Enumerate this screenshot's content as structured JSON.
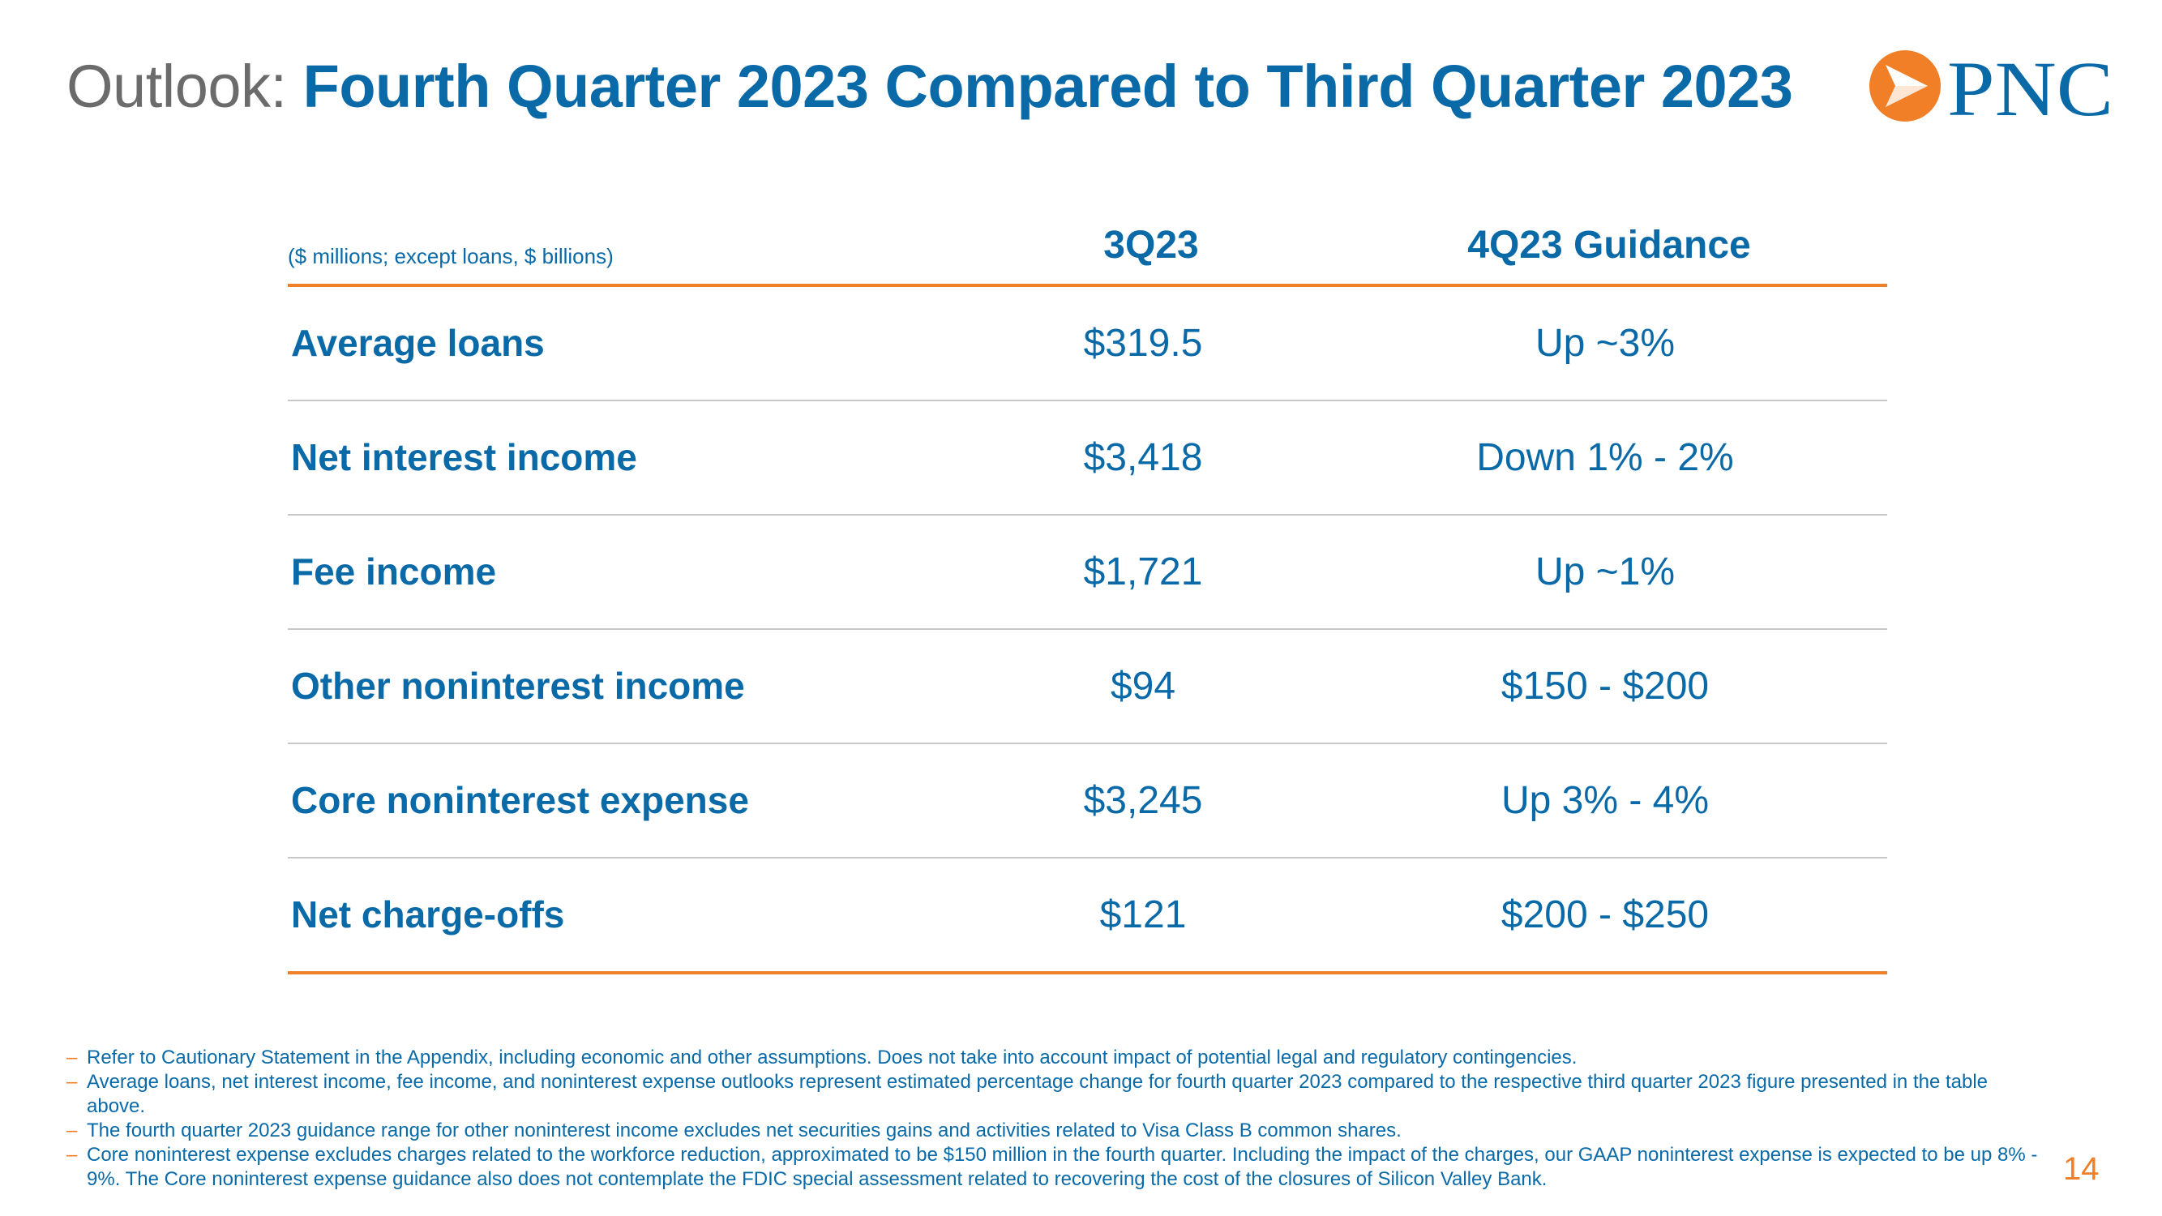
{
  "header": {
    "title_prefix": "Outlook:",
    "title_main": "Fourth Quarter 2023 Compared to Third Quarter 2023",
    "logo_text": "PNC"
  },
  "table": {
    "unit_note": "($ millions; except loans, $ billions)",
    "columns": [
      "3Q23",
      "4Q23 Guidance"
    ],
    "rows": [
      {
        "label": "Average loans",
        "q3": "$319.5",
        "guidance": "Up ~3%"
      },
      {
        "label": "Net interest income",
        "q3": "$3,418",
        "guidance": "Down 1% - 2%"
      },
      {
        "label": "Fee income",
        "q3": "$1,721",
        "guidance": "Up ~1%"
      },
      {
        "label": "Other noninterest income",
        "q3": "$94",
        "guidance": "$150 - $200"
      },
      {
        "label": "Core noninterest expense",
        "q3": "$3,245",
        "guidance": "Up 3% - 4%"
      },
      {
        "label": "Net charge-offs",
        "q3": "$121",
        "guidance": "$200 - $250"
      }
    ]
  },
  "footnotes": [
    "Refer to Cautionary Statement in the Appendix, including economic and other assumptions. Does not take into account impact of potential legal and regulatory contingencies.",
    "Average loans, net interest income, fee income, and noninterest expense outlooks represent estimated percentage change for fourth quarter 2023 compared to the respective third quarter 2023 figure presented in the table above.",
    "The fourth quarter 2023 guidance range for other noninterest income excludes net securities gains and activities related to Visa Class B common shares.",
    "Core noninterest expense excludes charges related to the workforce reduction, approximated to be $150 million in the fourth quarter. Including the impact of the charges, our GAAP noninterest expense is expected to be up 8% - 9%. The Core noninterest expense guidance also does not contemplate the FDIC special assessment related to recovering the cost of the closures of Silicon Valley Bank."
  ],
  "footnote_dash": "–",
  "page_number": "14",
  "colors": {
    "brand_blue": "#0a6aa8",
    "brand_orange": "#f07f28",
    "title_gray": "#6b6b6b"
  }
}
